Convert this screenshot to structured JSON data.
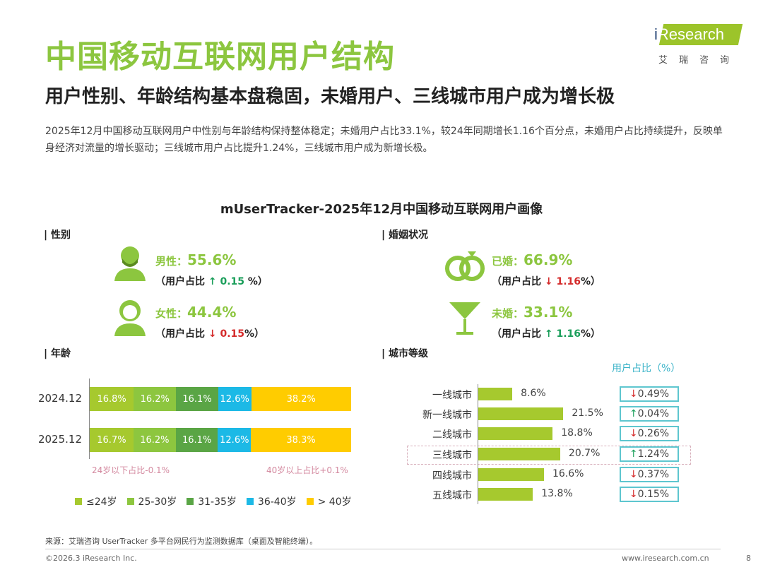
{
  "title": "中国移动互联网用户结构",
  "subtitle": "用户性别、年龄结构基本盘稳固，未婚用户、三线城市用户成为增长极",
  "description": "2025年12月中国移动互联网用户中性别与年龄结构保持整体稳定；未婚用户占比33.1%，较24年同期增长1.16个百分点，未婚用户占比持续提升，反映单身经济对流量的增长驱动；三线城市用户占比提升1.24%，三线城市用户成为新增长极。",
  "logo": {
    "text": "iResearch",
    "cn": "艾瑞咨询"
  },
  "chart_title": "mUserTracker-2025年12月中国移动互联网用户画像",
  "gender": {
    "section": "| 性别",
    "male_label": "男性：",
    "male_value": "55.6%",
    "male_change_prefix": "（用户占比",
    "male_arrow": "↑",
    "male_change": "0.15",
    "male_change_suffix": " %）",
    "female_label": "女性：",
    "female_value": "44.4%",
    "female_change_prefix": "（用户占比",
    "female_arrow": "↓",
    "female_change": "0.15",
    "female_change_suffix": "%）"
  },
  "marriage": {
    "section": "| 婚姻状况",
    "married_label": "已婚：",
    "married_value": "66.9%",
    "married_change_prefix": "（用户占比",
    "married_arrow": "↓",
    "married_change": "1.16",
    "married_change_suffix": "%）",
    "single_label": "未婚：",
    "single_value": "33.1%",
    "single_change_prefix": "（用户占比",
    "single_arrow": "↑",
    "single_change": "1.16",
    "single_change_suffix": "%）"
  },
  "age_section": "| 年龄",
  "city_section": "| 城市等级",
  "chart_data": [
    {
      "type": "bar",
      "stacked": true,
      "orientation": "horizontal",
      "title": "年龄",
      "categories": [
        "2024.12",
        "2025.12"
      ],
      "series": [
        {
          "name": "≤24岁",
          "color": "#a6c92e",
          "values": [
            16.8,
            16.7
          ],
          "labels": [
            "16.8%",
            "16.7%"
          ]
        },
        {
          "name": "25-30岁",
          "color": "#8dc63f",
          "values": [
            16.2,
            16.2
          ],
          "labels": [
            "16.2%",
            "16.2%"
          ]
        },
        {
          "name": "31-35岁",
          "color": "#5aa545",
          "values": [
            16.1,
            16.1
          ],
          "labels": [
            "16.1%",
            "16.1%"
          ]
        },
        {
          "name": "36-40岁",
          "color": "#1cb9e6",
          "values": [
            12.6,
            12.6
          ],
          "labels": [
            "12.6%",
            "12.6%"
          ]
        },
        {
          "name": "> 40岁",
          "color": "#ffcc00",
          "values": [
            38.2,
            38.3
          ],
          "labels": [
            "38.2%",
            "38.3%"
          ]
        }
      ],
      "annotations": [
        "24岁以下占比-0.1%",
        "40岁以上占比+0.1%"
      ],
      "legend": "bottom"
    },
    {
      "type": "bar",
      "orientation": "horizontal",
      "title": "城市等级",
      "change_header": "用户占比（%）",
      "categories": [
        "一线城市",
        "新一线城市",
        "二线城市",
        "三线城市",
        "四线城市",
        "五线城市"
      ],
      "values": [
        8.6,
        21.5,
        18.8,
        20.7,
        16.6,
        13.8
      ],
      "labels": [
        "8.6%",
        "21.5%",
        "18.8%",
        "20.7%",
        "16.6%",
        "13.8%"
      ],
      "changes": [
        {
          "arrow": "↓",
          "value": "0.49%"
        },
        {
          "arrow": "↑",
          "value": "0.04%"
        },
        {
          "arrow": "↓",
          "value": "0.26%"
        },
        {
          "arrow": "↑",
          "value": "1.24%"
        },
        {
          "arrow": "↓",
          "value": "0.37%"
        },
        {
          "arrow": "↓",
          "value": "0.15%"
        }
      ],
      "highlight": "三线城市",
      "color": "#a6c92e"
    }
  ],
  "footer": {
    "source": "来源：艾瑞咨询 UserTracker 多平台网民行为监测数据库（桌面及智能终端）。",
    "copyright": "©2026.3 iResearch Inc.",
    "website": "www.iresearch.com.cn",
    "page": "8"
  }
}
